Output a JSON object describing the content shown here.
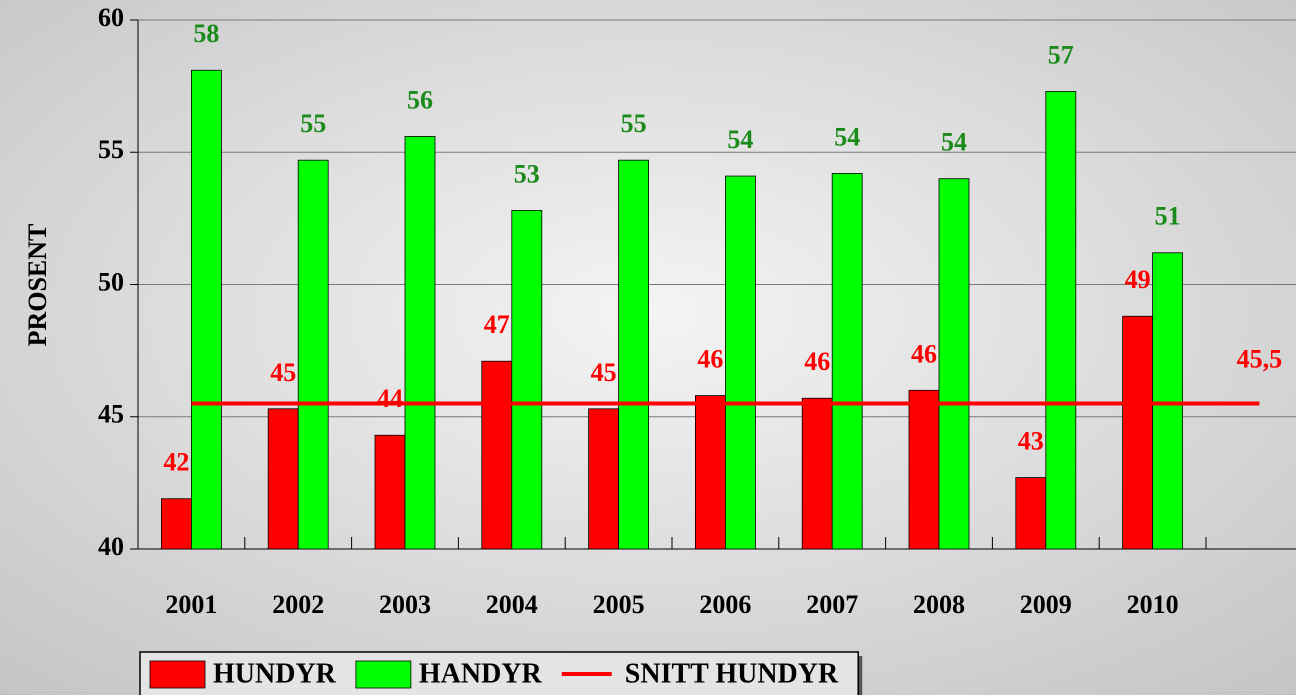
{
  "chart_data": {
    "type": "bar",
    "y_label": "PROSENT",
    "categories": [
      "2001",
      "2002",
      "2003",
      "2004",
      "2005",
      "2006",
      "2007",
      "2008",
      "2009",
      "2010",
      null
    ],
    "series": [
      {
        "name": "HUNDYR",
        "type": "bar",
        "color": "#ff0000",
        "label_color": "#ff0000",
        "values": [
          41.9,
          45.3,
          44.3,
          47.1,
          45.3,
          45.8,
          45.7,
          46.0,
          42.7,
          48.8,
          null
        ],
        "value_labels": [
          "42",
          "45",
          "44",
          "47",
          "45",
          "46",
          "46",
          "46",
          "43",
          "49",
          null
        ]
      },
      {
        "name": "HANDYR",
        "type": "bar",
        "color": "#00ff00",
        "label_color": "#1a8a1a",
        "values": [
          58.1,
          54.7,
          55.6,
          52.8,
          54.7,
          54.1,
          54.2,
          54.0,
          57.3,
          51.2,
          null
        ],
        "value_labels": [
          "58",
          "55",
          "56",
          "53",
          "55",
          "54",
          "54",
          "54",
          "57",
          "51",
          null
        ]
      },
      {
        "name": "SNITT HUNDYR",
        "type": "line",
        "color": "#ff0000",
        "label_color": "#ff0000",
        "values": [
          45.5,
          45.5,
          45.5,
          45.5,
          45.5,
          45.5,
          45.5,
          45.5,
          45.5,
          45.5,
          45.5
        ],
        "value_labels": [
          null,
          null,
          null,
          null,
          null,
          null,
          null,
          null,
          null,
          null,
          "45,5"
        ]
      }
    ],
    "ylim": [
      40,
      60
    ],
    "yticks": [
      40,
      45,
      50,
      55,
      60
    ],
    "grid": true,
    "legend": "bottom"
  }
}
